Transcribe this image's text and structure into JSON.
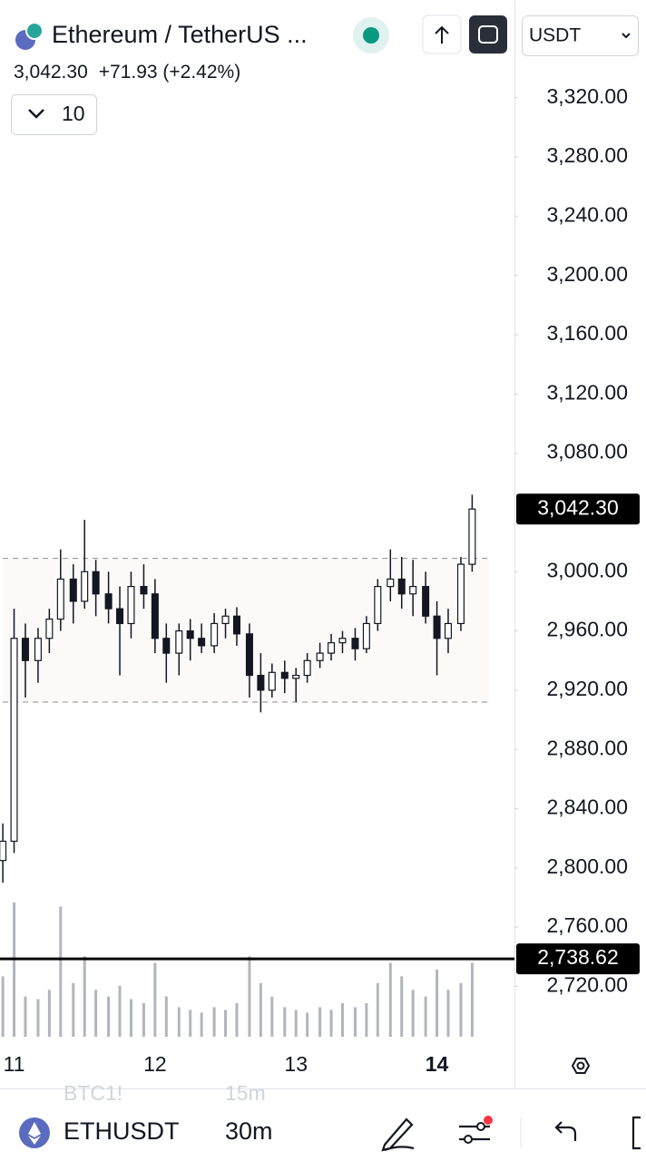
{
  "header": {
    "title": "Ethereum / TetherUS ...",
    "price": "3,042.30",
    "change": "+71.93 (+2.42%)",
    "currency": "USDT",
    "interval_count": "10"
  },
  "chart_data": {
    "type": "candlestick",
    "color": "#131722",
    "volume_color": "#b2b5be",
    "x": [
      10.92,
      11.0,
      11.08,
      11.17,
      11.25,
      11.33,
      11.42,
      11.5,
      11.58,
      11.67,
      11.75,
      11.83,
      11.92,
      12.0,
      12.08,
      12.17,
      12.25,
      12.33,
      12.42,
      12.5,
      12.58,
      12.67,
      12.75,
      12.83,
      12.92,
      13.0,
      13.08,
      13.17,
      13.25,
      13.33,
      13.42,
      13.5,
      13.58,
      13.67,
      13.75,
      13.83,
      13.92,
      14.0,
      14.08,
      14.17,
      14.25
    ],
    "open": [
      2805,
      2818,
      2955,
      2940,
      2955,
      2968,
      2995,
      2980,
      3000,
      2985,
      2975,
      2965,
      2990,
      2985,
      2955,
      2945,
      2960,
      2955,
      2950,
      2965,
      2970,
      2958,
      2930,
      2920,
      2932,
      2928,
      2930,
      2940,
      2945,
      2952,
      2955,
      2948,
      2965,
      2990,
      2995,
      2985,
      2990,
      2970,
      2955,
      2965,
      3005
    ],
    "high": [
      2830,
      2975,
      2965,
      2962,
      2975,
      3015,
      3005,
      3035,
      3008,
      3000,
      2990,
      3000,
      3005,
      2995,
      2965,
      2965,
      2968,
      2965,
      2972,
      2975,
      2976,
      2965,
      2945,
      2938,
      2940,
      2935,
      2945,
      2952,
      2958,
      2960,
      2962,
      2970,
      2995,
      3015,
      3010,
      3008,
      3000,
      2980,
      2975,
      3010,
      3052
    ],
    "low": [
      2790,
      2810,
      2915,
      2925,
      2945,
      2960,
      2965,
      2975,
      2970,
      2965,
      2930,
      2955,
      2975,
      2945,
      2925,
      2930,
      2940,
      2945,
      2945,
      2955,
      2950,
      2915,
      2905,
      2915,
      2918,
      2912,
      2925,
      2935,
      2940,
      2945,
      2940,
      2945,
      2960,
      2980,
      2975,
      2970,
      2965,
      2930,
      2945,
      2960,
      3000
    ],
    "close": [
      2818,
      2955,
      2940,
      2955,
      2968,
      2995,
      2980,
      3000,
      2985,
      2975,
      2965,
      2990,
      2985,
      2955,
      2945,
      2960,
      2955,
      2950,
      2965,
      2970,
      2958,
      2930,
      2920,
      2932,
      2928,
      2930,
      2940,
      2945,
      2952,
      2955,
      2948,
      2965,
      2990,
      2995,
      2985,
      2990,
      2970,
      2955,
      2965,
      3005,
      3042.3
    ],
    "volume": [
      45,
      100,
      30,
      28,
      35,
      97,
      40,
      60,
      35,
      30,
      38,
      28,
      25,
      55,
      30,
      22,
      20,
      18,
      22,
      20,
      25,
      60,
      40,
      30,
      22,
      20,
      18,
      22,
      20,
      25,
      22,
      25,
      40,
      55,
      45,
      35,
      30,
      50,
      35,
      40,
      55
    ],
    "volume_lim": [
      0,
      100
    ],
    "xlim": [
      10.9,
      14.55
    ],
    "xticks": [
      11,
      12,
      13,
      14
    ],
    "ylim": [
      2686,
      3386
    ],
    "yticks": [
      {
        "value": 3320,
        "label": "3,320.00"
      },
      {
        "value": 3280,
        "label": "3,280.00"
      },
      {
        "value": 3240,
        "label": "3,240.00"
      },
      {
        "value": 3200,
        "label": "3,200.00"
      },
      {
        "value": 3160,
        "label": "3,160.00"
      },
      {
        "value": 3120,
        "label": "3,120.00"
      },
      {
        "value": 3080,
        "label": "3,080.00"
      },
      {
        "value": 3000,
        "label": "3,000.00"
      },
      {
        "value": 2960,
        "label": "2,960.00"
      },
      {
        "value": 2920,
        "label": "2,920.00"
      },
      {
        "value": 2880,
        "label": "2,880.00"
      },
      {
        "value": 2840,
        "label": "2,840.00"
      },
      {
        "value": 2800,
        "label": "2,800.00"
      },
      {
        "value": 2760,
        "label": "2,760.00"
      },
      {
        "value": 2720,
        "label": "2,720.00"
      }
    ],
    "last_price": {
      "value": 3042.3,
      "label": "3,042.30"
    },
    "price_line": {
      "value": 2738.62,
      "label": "2,738.62"
    },
    "range_box": {
      "top": 3009,
      "bottom": 2912,
      "x_start": 10.92,
      "x_end": 14.37
    }
  },
  "footer": {
    "symbol": "ETHUSDT",
    "interval": "30m",
    "faded_symbol": "BTC1!",
    "faded_interval": "15m"
  }
}
